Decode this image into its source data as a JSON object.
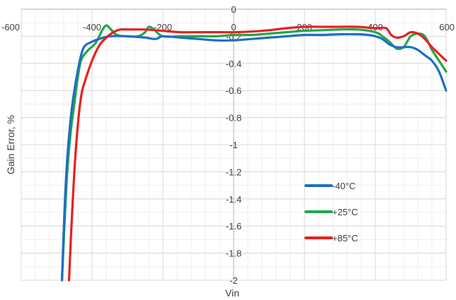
{
  "chart_data": {
    "type": "line",
    "title": "",
    "xlabel": "Vin",
    "ylabel": "Gain Error, %",
    "xlim": [
      -600,
      600
    ],
    "ylim": [
      -2,
      0
    ],
    "grid": true,
    "legend_position": "lower-right",
    "x_tick_labels": [
      "-600",
      "-400",
      "-200",
      "0",
      "200",
      "400",
      "600"
    ],
    "y_tick_labels": [
      "0",
      "-0.2",
      "-0.4",
      "-0.6",
      "-0.8",
      "-1",
      "-1.2",
      "-1.4",
      "-1.6",
      "-1.8",
      "-2"
    ],
    "series": [
      {
        "name": "-40°C",
        "color": "#1f6fbf",
        "x": [
          -485,
          -478,
          -470,
          -460,
          -450,
          -440,
          -430,
          -420,
          -400,
          -380,
          -350,
          -300,
          -250,
          -220,
          -200,
          -150,
          -100,
          -50,
          0,
          50,
          100,
          150,
          200,
          250,
          300,
          350,
          380,
          400,
          420,
          440,
          460,
          480,
          500,
          520,
          540,
          560,
          580,
          600
        ],
        "y": [
          -2,
          -1.5,
          -1.1,
          -0.8,
          -0.6,
          -0.45,
          -0.33,
          -0.27,
          -0.24,
          -0.22,
          -0.2,
          -0.2,
          -0.21,
          -0.22,
          -0.2,
          -0.21,
          -0.22,
          -0.23,
          -0.23,
          -0.22,
          -0.21,
          -0.2,
          -0.19,
          -0.19,
          -0.185,
          -0.185,
          -0.19,
          -0.2,
          -0.22,
          -0.26,
          -0.28,
          -0.28,
          -0.28,
          -0.3,
          -0.34,
          -0.38,
          -0.46,
          -0.6
        ]
      },
      {
        "name": "+25°C",
        "color": "#21a84a",
        "x": [
          -485,
          -478,
          -470,
          -460,
          -450,
          -440,
          -430,
          -410,
          -390,
          -370,
          -360,
          -350,
          -330,
          -300,
          -270,
          -250,
          -240,
          -225,
          -200,
          -150,
          -100,
          -50,
          0,
          50,
          100,
          150,
          200,
          250,
          300,
          350,
          400,
          420,
          440,
          460,
          480,
          500,
          520,
          540,
          560,
          580,
          600
        ],
        "y": [
          -2,
          -1.6,
          -1.2,
          -0.9,
          -0.7,
          -0.5,
          -0.37,
          -0.3,
          -0.25,
          -0.15,
          -0.12,
          -0.14,
          -0.19,
          -0.2,
          -0.2,
          -0.17,
          -0.13,
          -0.15,
          -0.2,
          -0.2,
          -0.2,
          -0.2,
          -0.19,
          -0.19,
          -0.18,
          -0.17,
          -0.16,
          -0.155,
          -0.15,
          -0.15,
          -0.17,
          -0.2,
          -0.24,
          -0.29,
          -0.28,
          -0.2,
          -0.18,
          -0.2,
          -0.3,
          -0.38,
          -0.46
        ]
      },
      {
        "name": "+85°C",
        "color": "#e8201e",
        "x": [
          -465,
          -460,
          -450,
          -440,
          -430,
          -420,
          -400,
          -380,
          -360,
          -340,
          -320,
          -300,
          -250,
          -200,
          -150,
          -100,
          -50,
          0,
          50,
          100,
          150,
          200,
          250,
          300,
          350,
          400,
          430,
          445,
          460,
          480,
          500,
          520,
          540,
          560,
          580,
          600
        ],
        "y": [
          -2,
          -1.7,
          -1.2,
          -0.85,
          -0.63,
          -0.53,
          -0.38,
          -0.27,
          -0.21,
          -0.17,
          -0.15,
          -0.15,
          -0.15,
          -0.16,
          -0.17,
          -0.17,
          -0.17,
          -0.17,
          -0.165,
          -0.155,
          -0.14,
          -0.13,
          -0.13,
          -0.13,
          -0.13,
          -0.14,
          -0.14,
          -0.19,
          -0.21,
          -0.2,
          -0.17,
          -0.18,
          -0.22,
          -0.28,
          -0.33,
          -0.38
        ]
      }
    ]
  }
}
